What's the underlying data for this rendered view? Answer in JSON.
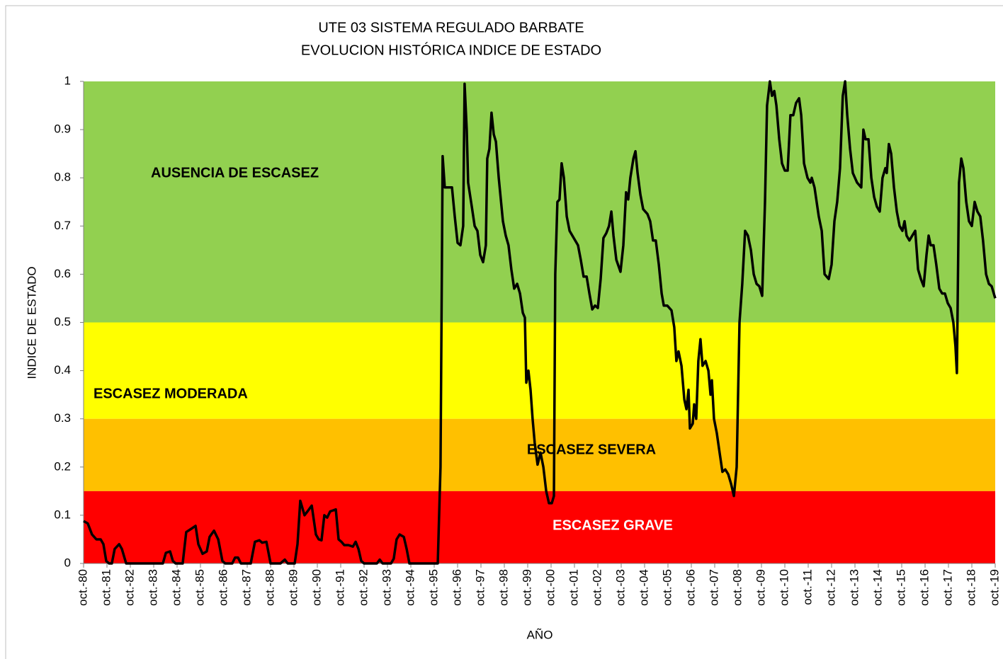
{
  "chart_data": {
    "type": "line",
    "title": [
      "UTE 03 SISTEMA REGULADO BARBATE",
      "EVOLUCION HISTÓRICA  INDICE DE ESTADO"
    ],
    "xlabel": "AÑO",
    "ylabel": "INDICE DE ESTADO",
    "color": "#000000",
    "bands": [
      {
        "label": "AUSENCIA DE ESCASEZ",
        "range": [
          0.5,
          1
        ],
        "color": "#92d050",
        "text_color": "#000000"
      },
      {
        "label": "ESCASEZ  MODERADA",
        "range": [
          0.3,
          0.5
        ],
        "color": "#ffff00",
        "text_color": "#000000"
      },
      {
        "label": "ESCASEZ  SEVERA",
        "range": [
          0.15,
          0.3
        ],
        "color": "#ffc000",
        "text_color": "#000000"
      },
      {
        "label": "ESCASEZ  GRAVE",
        "range": [
          0,
          0.15
        ],
        "color": "#ff0000",
        "text_color": "#ffffff"
      }
    ],
    "xlim": [
      1980.75,
      2019.75
    ],
    "ylim": [
      0,
      1
    ],
    "yticks": [
      0,
      0.1,
      0.2,
      0.3,
      0.4,
      0.5,
      0.6,
      0.7,
      0.8,
      0.9,
      1
    ],
    "xticks": [
      {
        "value": 1980.75,
        "label": "oct.-80"
      },
      {
        "value": 1981.75,
        "label": "oct.-81"
      },
      {
        "value": 1982.75,
        "label": "oct.-82"
      },
      {
        "value": 1983.75,
        "label": "oct.-83"
      },
      {
        "value": 1984.75,
        "label": "oct.-84"
      },
      {
        "value": 1985.75,
        "label": "oct.-85"
      },
      {
        "value": 1986.75,
        "label": "oct.-86"
      },
      {
        "value": 1987.75,
        "label": "oct.-87"
      },
      {
        "value": 1988.75,
        "label": "oct.-88"
      },
      {
        "value": 1989.75,
        "label": "oct.-89"
      },
      {
        "value": 1990.75,
        "label": "oct.-90"
      },
      {
        "value": 1991.75,
        "label": "oct.-91"
      },
      {
        "value": 1992.75,
        "label": "oct.-92"
      },
      {
        "value": 1993.75,
        "label": "oct.-93"
      },
      {
        "value": 1994.75,
        "label": "oct.-94"
      },
      {
        "value": 1995.75,
        "label": "oct.-95"
      },
      {
        "value": 1996.75,
        "label": "oct.-96"
      },
      {
        "value": 1997.75,
        "label": "oct.-97"
      },
      {
        "value": 1998.75,
        "label": "oct.-98"
      },
      {
        "value": 1999.75,
        "label": "oct.-99"
      },
      {
        "value": 2000.75,
        "label": "oct.-00"
      },
      {
        "value": 2001.75,
        "label": "oct.-01"
      },
      {
        "value": 2002.75,
        "label": "oct.-02"
      },
      {
        "value": 2003.75,
        "label": "oct.-03"
      },
      {
        "value": 2004.75,
        "label": "oct.-04"
      },
      {
        "value": 2005.75,
        "label": "oct.-05"
      },
      {
        "value": 2006.75,
        "label": "oct.-06"
      },
      {
        "value": 2007.75,
        "label": "oct.-07"
      },
      {
        "value": 2008.75,
        "label": "oct.-08"
      },
      {
        "value": 2009.75,
        "label": "oct.-09"
      },
      {
        "value": 2010.75,
        "label": "oct.-10"
      },
      {
        "value": 2011.75,
        "label": "oct.-11"
      },
      {
        "value": 2012.75,
        "label": "oct.-12"
      },
      {
        "value": 2013.75,
        "label": "oct.-13"
      },
      {
        "value": 2014.75,
        "label": "oct.-14"
      },
      {
        "value": 2015.75,
        "label": "oct.-15"
      },
      {
        "value": 2016.75,
        "label": "oct.-16"
      },
      {
        "value": 2017.75,
        "label": "oct.-17"
      },
      {
        "value": 2018.75,
        "label": "oct.-18"
      },
      {
        "value": 2019.75,
        "label": "oct.-19"
      }
    ],
    "x": [
      1980.75,
      1980.93,
      1981.11,
      1981.3,
      1981.48,
      1981.6,
      1981.72,
      1981.84,
      1981.96,
      1982.08,
      1982.27,
      1982.39,
      1982.57,
      1984.14,
      1984.27,
      1984.45,
      1984.57,
      1984.69,
      1984.99,
      1985.14,
      1985.36,
      1985.54,
      1985.66,
      1985.84,
      1986.02,
      1986.14,
      1986.33,
      1986.51,
      1986.69,
      1986.81,
      1987.11,
      1987.23,
      1987.36,
      1987.48,
      1987.9,
      1988.08,
      1988.27,
      1988.39,
      1988.57,
      1988.75,
      1989.17,
      1989.36,
      1989.48,
      1989.78,
      1989.9,
      1990.02,
      1990.2,
      1990.33,
      1990.51,
      1990.69,
      1990.81,
      1990.93,
      1991.05,
      1991.17,
      1991.3,
      1991.42,
      1991.54,
      1991.66,
      1991.78,
      1991.9,
      1992.08,
      1992.27,
      1992.39,
      1992.51,
      1992.63,
      1992.75,
      1993.3,
      1993.42,
      1993.54,
      1993.9,
      1994.02,
      1994.14,
      1994.27,
      1994.45,
      1994.57,
      1994.69,
      1995.9,
      1996.02,
      1996.11,
      1996.2,
      1996.33,
      1996.51,
      1996.63,
      1996.75,
      1996.87,
      1996.99,
      1997.05,
      1997.14,
      1997.2,
      1997.36,
      1997.48,
      1997.6,
      1997.72,
      1997.84,
      1997.96,
      1998.02,
      1998.11,
      1998.2,
      1998.3,
      1998.39,
      1998.51,
      1998.69,
      1998.81,
      1998.93,
      1999.05,
      1999.17,
      1999.3,
      1999.42,
      1999.54,
      1999.63,
      1999.69,
      1999.78,
      1999.87,
      1999.96,
      2000.05,
      2000.17,
      2000.3,
      2000.42,
      2000.54,
      2000.66,
      2000.78,
      2000.87,
      2000.93,
      2001.02,
      2001.11,
      2001.2,
      2001.3,
      2001.42,
      2001.54,
      2001.72,
      2001.9,
      2002.02,
      2002.14,
      2002.27,
      2002.39,
      2002.51,
      2002.63,
      2002.75,
      2002.87,
      2002.99,
      2003.11,
      2003.23,
      2003.33,
      2003.42,
      2003.54,
      2003.72,
      2003.84,
      2003.96,
      2004.05,
      2004.14,
      2004.27,
      2004.36,
      2004.45,
      2004.57,
      2004.69,
      2004.87,
      2004.99,
      2005.11,
      2005.23,
      2005.36,
      2005.48,
      2005.57,
      2005.72,
      2005.9,
      2006.02,
      2006.11,
      2006.2,
      2006.33,
      2006.45,
      2006.54,
      2006.63,
      2006.69,
      2006.81,
      2006.87,
      2006.96,
      2007.05,
      2007.14,
      2007.23,
      2007.36,
      2007.48,
      2007.57,
      2007.63,
      2007.72,
      2007.84,
      2007.96,
      2008.08,
      2008.2,
      2008.33,
      2008.45,
      2008.57,
      2008.69,
      2008.81,
      2008.93,
      2009.05,
      2009.17,
      2009.3,
      2009.42,
      2009.54,
      2009.66,
      2009.78,
      2009.9,
      2009.99,
      2010.11,
      2010.2,
      2010.3,
      2010.39,
      2010.51,
      2010.63,
      2010.75,
      2010.87,
      2010.99,
      2011.11,
      2011.23,
      2011.36,
      2011.45,
      2011.57,
      2011.72,
      2011.84,
      2011.9,
      2012.02,
      2012.2,
      2012.33,
      2012.45,
      2012.63,
      2012.75,
      2012.87,
      2012.99,
      2013.11,
      2013.23,
      2013.33,
      2013.42,
      2013.54,
      2013.66,
      2013.84,
      2014.02,
      2014.11,
      2014.2,
      2014.33,
      2014.45,
      2014.57,
      2014.69,
      2014.81,
      2014.93,
      2015.05,
      2015.11,
      2015.2,
      2015.3,
      2015.42,
      2015.54,
      2015.66,
      2015.78,
      2015.87,
      2015.96,
      2016.08,
      2016.2,
      2016.33,
      2016.45,
      2016.57,
      2016.69,
      2016.81,
      2016.9,
      2016.99,
      2017.11,
      2017.23,
      2017.36,
      2017.48,
      2017.6,
      2017.72,
      2017.84,
      2017.96,
      2018.05,
      2018.11,
      2018.2,
      2018.3,
      2018.39,
      2018.51,
      2018.63,
      2018.75,
      2018.87,
      2018.99,
      2019.11,
      2019.23,
      2019.36,
      2019.48,
      2019.6,
      2019.75
    ],
    "values": [
      0.088,
      0.083,
      0.06,
      0.05,
      0.05,
      0.04,
      0.005,
      0,
      0,
      0.03,
      0.04,
      0.03,
      0,
      0,
      0.022,
      0.025,
      0.005,
      0,
      0,
      0.065,
      0.072,
      0.078,
      0.04,
      0.02,
      0.025,
      0.055,
      0.068,
      0.05,
      0.005,
      0,
      0,
      0.012,
      0.012,
      0,
      0,
      0.045,
      0.048,
      0.043,
      0.045,
      0,
      0,
      0.008,
      0,
      0,
      0.04,
      0.13,
      0.1,
      0.108,
      0.12,
      0.06,
      0.05,
      0.048,
      0.1,
      0.095,
      0.108,
      0.11,
      0.112,
      0.05,
      0.045,
      0.038,
      0.038,
      0.035,
      0.045,
      0.03,
      0.005,
      0,
      0,
      0.008,
      0,
      0,
      0.01,
      0.05,
      0.06,
      0.055,
      0.03,
      0,
      0,
      0.2,
      0.845,
      0.78,
      0.78,
      0.78,
      0.72,
      0.665,
      0.66,
      0.7,
      0.995,
      0.9,
      0.79,
      0.74,
      0.7,
      0.69,
      0.64,
      0.625,
      0.66,
      0.84,
      0.86,
      0.935,
      0.89,
      0.875,
      0.8,
      0.71,
      0.68,
      0.66,
      0.61,
      0.57,
      0.58,
      0.56,
      0.52,
      0.51,
      0.375,
      0.4,
      0.36,
      0.3,
      0.25,
      0.205,
      0.23,
      0.2,
      0.15,
      0.125,
      0.125,
      0.14,
      0.6,
      0.75,
      0.755,
      0.83,
      0.8,
      0.72,
      0.69,
      0.675,
      0.66,
      0.63,
      0.595,
      0.595,
      0.56,
      0.527,
      0.535,
      0.53,
      0.59,
      0.675,
      0.685,
      0.7,
      0.73,
      0.68,
      0.63,
      0.605,
      0.66,
      0.77,
      0.755,
      0.8,
      0.84,
      0.855,
      0.81,
      0.765,
      0.735,
      0.725,
      0.71,
      0.67,
      0.67,
      0.62,
      0.56,
      0.535,
      0.535,
      0.525,
      0.49,
      0.42,
      0.44,
      0.41,
      0.34,
      0.32,
      0.36,
      0.28,
      0.29,
      0.33,
      0.3,
      0.42,
      0.465,
      0.41,
      0.42,
      0.4,
      0.35,
      0.38,
      0.3,
      0.27,
      0.23,
      0.19,
      0.195,
      0.185,
      0.165,
      0.14,
      0.2,
      0.5,
      0.58,
      0.69,
      0.68,
      0.65,
      0.6,
      0.58,
      0.575,
      0.555,
      0.75,
      0.95,
      1.0,
      0.97,
      0.98,
      0.95,
      0.88,
      0.83,
      0.815,
      0.815,
      0.93,
      0.93,
      0.955,
      0.965,
      0.93,
      0.83,
      0.8,
      0.79,
      0.8,
      0.78,
      0.72,
      0.69,
      0.6,
      0.59,
      0.62,
      0.71,
      0.75,
      0.82,
      0.97,
      1.0,
      0.93,
      0.86,
      0.81,
      0.79,
      0.78,
      0.9,
      0.88,
      0.88,
      0.8,
      0.76,
      0.74,
      0.73,
      0.8,
      0.82,
      0.81,
      0.87,
      0.85,
      0.78,
      0.73,
      0.7,
      0.69,
      0.71,
      0.68,
      0.67,
      0.68,
      0.69,
      0.61,
      0.59,
      0.575,
      0.64,
      0.68,
      0.66,
      0.66,
      0.62,
      0.57,
      0.56,
      0.56,
      0.54,
      0.53,
      0.5,
      0.45,
      0.395,
      0.79,
      0.84,
      0.82,
      0.75,
      0.71,
      0.7,
      0.75,
      0.73,
      0.72,
      0.67,
      0.6,
      0.58,
      0.575,
      0.55
    ]
  }
}
